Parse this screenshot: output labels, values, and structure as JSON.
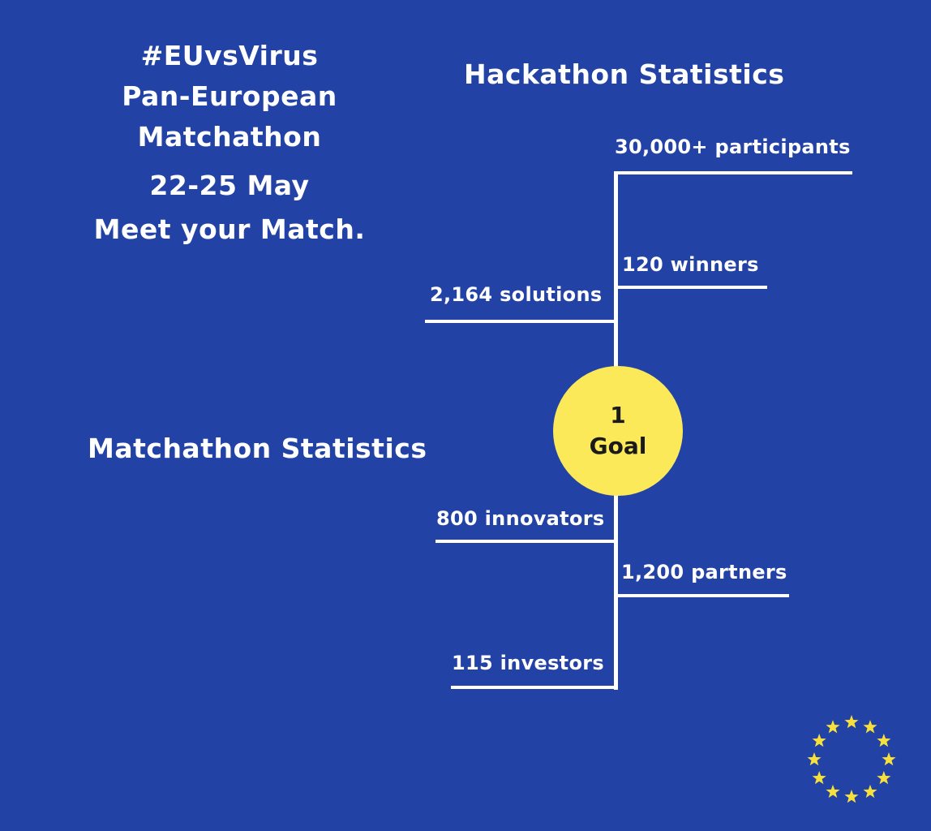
{
  "title": {
    "lines": [
      "#EUvsVirus",
      "Pan-European",
      "Matchathon"
    ],
    "dates": "22-25 May",
    "tagline": "Meet your Match."
  },
  "hackathon": {
    "heading": "Hackathon Statistics",
    "stats": {
      "participants": "30,000+ participants",
      "winners": "120 winners",
      "solutions": "2,164 solutions"
    }
  },
  "goal": {
    "number": "1",
    "label": "Goal"
  },
  "matchathon": {
    "heading": "Matchathon Statistics",
    "stats": {
      "innovators": "800 innovators",
      "partners": "1,200 partners",
      "investors": "115 investors"
    }
  },
  "colors": {
    "background": "#2342a5",
    "goal_circle": "#fbe95a",
    "lines": "#ffffff",
    "stars": "#f7e03c"
  },
  "logo": {
    "icon": "eu-flag-stars-icon",
    "star_count": 12
  }
}
